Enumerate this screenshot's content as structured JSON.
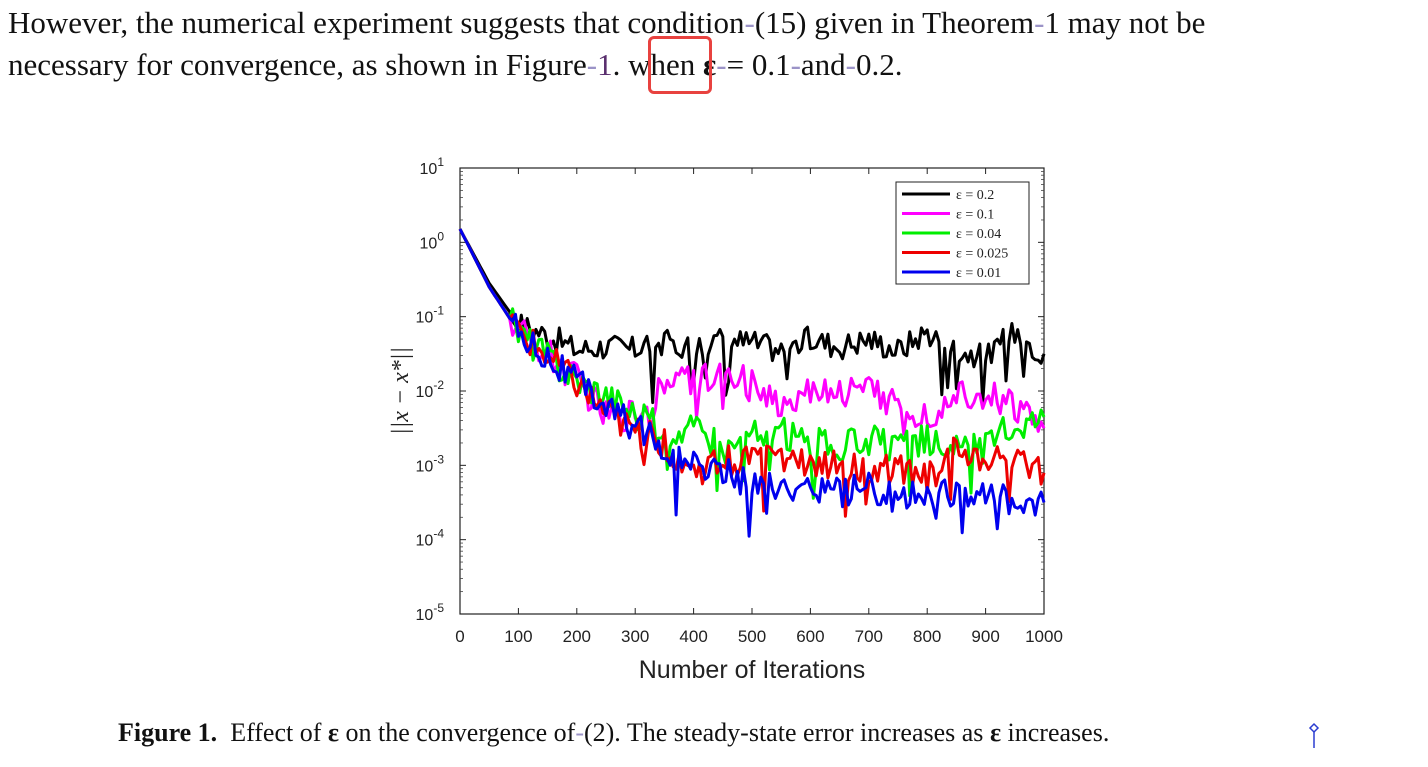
{
  "paragraph": {
    "line1_a": "However, the numerical experiment suggests that condition",
    "line1_b": "(15) given in Theorem",
    "line1_c": "1 may not be",
    "line2_a": "necessary for convergence, as shown in Figure",
    "line2_ref": "1",
    "line2_b": ". when",
    "line2_eps": "ε",
    "line2_c": "= 0.1",
    "line2_d": "and",
    "line2_e": "0.2."
  },
  "caption": {
    "label": "Figure 1.",
    "text_a": "Effect of",
    "eps": "ε",
    "text_b": "on the convergence of",
    "text_c": "(2). The steady-state error increases as",
    "text_d": "increases."
  },
  "colors": {
    "highlight": "#e8423f",
    "link": "#5a2f6e"
  },
  "chart_data": {
    "type": "line",
    "title": "",
    "xlabel": "Number of Iterations",
    "ylabel": "||x − x*||",
    "xlim": [
      0,
      1000
    ],
    "ylim_log10": [
      -5,
      1
    ],
    "yscale": "log",
    "x_ticks": [
      "0",
      "100",
      "200",
      "300",
      "400",
      "500",
      "600",
      "700",
      "800",
      "900",
      "1000"
    ],
    "y_ticks": [
      {
        "base": "10",
        "exp": "1"
      },
      {
        "base": "10",
        "exp": "0"
      },
      {
        "base": "10",
        "exp": "-1"
      },
      {
        "base": "10",
        "exp": "-2"
      },
      {
        "base": "10",
        "exp": "-3"
      },
      {
        "base": "10",
        "exp": "-4"
      },
      {
        "base": "10",
        "exp": "-5"
      }
    ],
    "legend_position": "top-right",
    "series": [
      {
        "name": "ε = 0.2",
        "color": "#000000",
        "x": [
          0,
          50,
          100,
          150,
          200,
          250,
          300,
          350,
          400,
          450,
          500,
          550,
          600,
          650,
          700,
          750,
          800,
          850,
          900,
          950,
          1000
        ],
        "log10": [
          0.18,
          -0.55,
          -1.1,
          -1.25,
          -1.45,
          -1.4,
          -1.45,
          -1.35,
          -1.4,
          -1.3,
          -1.35,
          -1.45,
          -1.3,
          -1.4,
          -1.3,
          -1.45,
          -1.2,
          -1.45,
          -1.55,
          -1.2,
          -1.5
        ]
      },
      {
        "name": "ε = 0.1",
        "color": "#ff00ff",
        "x": [
          0,
          50,
          100,
          150,
          200,
          250,
          300,
          350,
          400,
          450,
          500,
          550,
          600,
          650,
          700,
          750,
          800,
          850,
          900,
          950,
          1000
        ],
        "log10": [
          0.18,
          -0.6,
          -1.2,
          -1.5,
          -1.85,
          -2.35,
          -2.3,
          -1.9,
          -1.85,
          -1.85,
          -1.85,
          -2.2,
          -1.95,
          -2.0,
          -2.0,
          -2.15,
          -2.35,
          -2.0,
          -2.05,
          -2.2,
          -2.5
        ]
      },
      {
        "name": "ε = 0.04",
        "color": "#00ee00",
        "x": [
          0,
          50,
          100,
          150,
          200,
          250,
          300,
          350,
          400,
          450,
          500,
          550,
          600,
          650,
          700,
          750,
          800,
          850,
          900,
          950,
          1000
        ],
        "log10": [
          0.18,
          -0.6,
          -1.2,
          -1.55,
          -1.85,
          -2.05,
          -2.3,
          -2.55,
          -2.5,
          -2.8,
          -2.6,
          -2.55,
          -2.7,
          -2.75,
          -2.65,
          -2.8,
          -2.65,
          -2.8,
          -2.75,
          -2.45,
          -2.35
        ]
      },
      {
        "name": "ε = 0.025",
        "color": "#ee0000",
        "x": [
          0,
          50,
          100,
          150,
          200,
          250,
          300,
          350,
          400,
          450,
          500,
          550,
          600,
          650,
          700,
          750,
          800,
          850,
          900,
          950,
          1000
        ],
        "log10": [
          0.18,
          -0.6,
          -1.2,
          -1.55,
          -1.9,
          -2.3,
          -2.55,
          -2.7,
          -3.1,
          -2.95,
          -2.9,
          -2.95,
          -3.0,
          -3.0,
          -3.1,
          -3.05,
          -3.2,
          -2.8,
          -2.95,
          -2.8,
          -3.1
        ]
      },
      {
        "name": "ε = 0.01",
        "color": "#0000ee",
        "x": [
          0,
          50,
          100,
          150,
          200,
          250,
          300,
          350,
          400,
          450,
          500,
          550,
          600,
          650,
          700,
          750,
          800,
          850,
          900,
          950,
          1000
        ],
        "log10": [
          0.18,
          -0.6,
          -1.2,
          -1.55,
          -1.9,
          -2.2,
          -2.5,
          -2.75,
          -3.0,
          -3.05,
          -3.25,
          -3.3,
          -3.25,
          -3.4,
          -3.3,
          -3.45,
          -3.35,
          -3.4,
          -3.35,
          -3.5,
          -3.5
        ]
      }
    ]
  }
}
